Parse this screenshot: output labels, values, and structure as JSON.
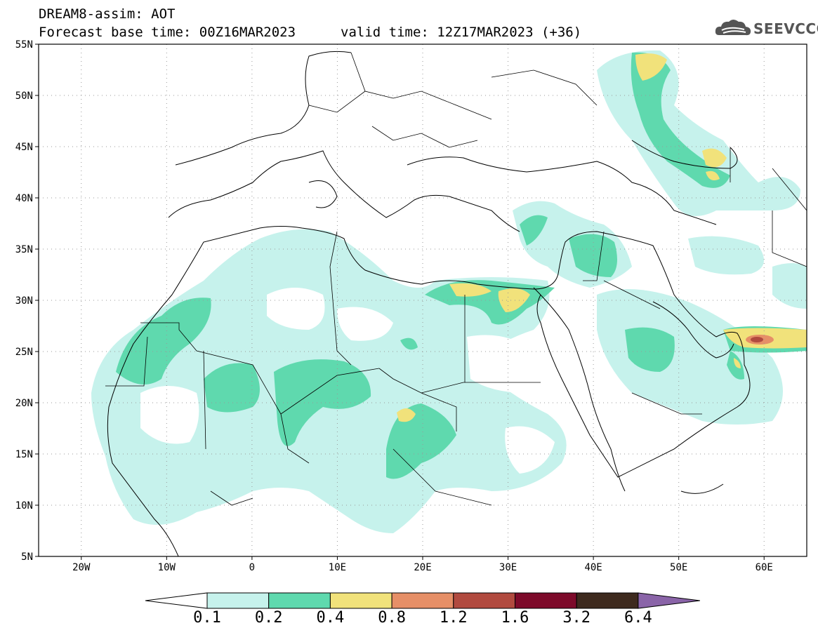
{
  "header": {
    "title": "DREAM8-assim: AOT",
    "base_time": "Forecast base time: 00Z16MAR2023",
    "valid_time": "valid time: 12Z17MAR2023 (+36)"
  },
  "logo": {
    "text": "SEEVCCC",
    "icon": "cloud-icon"
  },
  "map": {
    "projection": "lat-lon",
    "lon_range": [
      -25,
      65
    ],
    "lat_range": [
      5,
      55
    ],
    "grid": true,
    "lat_ticks": [
      {
        "value": 55,
        "label": "55N"
      },
      {
        "value": 50,
        "label": "50N"
      },
      {
        "value": 45,
        "label": "45N"
      },
      {
        "value": 40,
        "label": "40N"
      },
      {
        "value": 35,
        "label": "35N"
      },
      {
        "value": 30,
        "label": "30N"
      },
      {
        "value": 25,
        "label": "25N"
      },
      {
        "value": 20,
        "label": "20N"
      },
      {
        "value": 15,
        "label": "15N"
      },
      {
        "value": 10,
        "label": "10N"
      },
      {
        "value": 5,
        "label": "5N"
      }
    ],
    "lon_ticks": [
      {
        "value": -20,
        "label": "20W"
      },
      {
        "value": -10,
        "label": "10W"
      },
      {
        "value": 0,
        "label": "0"
      },
      {
        "value": 10,
        "label": "10E"
      },
      {
        "value": 20,
        "label": "20E"
      },
      {
        "value": 30,
        "label": "30E"
      },
      {
        "value": 40,
        "label": "40E"
      },
      {
        "value": 50,
        "label": "50E"
      },
      {
        "value": 60,
        "label": "60E"
      }
    ]
  },
  "colorbar": {
    "levels": [
      "0.1",
      "0.2",
      "0.4",
      "0.8",
      "1.2",
      "1.6",
      "3.2",
      "6.4"
    ],
    "colors": [
      "#ffffff",
      "#c6f2ec",
      "#5fd9ae",
      "#f1e27b",
      "#e68f67",
      "#b14a3f",
      "#7d0a2a",
      "#3e2a1e",
      "#8a64a8"
    ]
  },
  "colors": {
    "c1": "#c6f2ec",
    "c2": "#5fd9ae",
    "c3": "#f1e27b",
    "c4": "#e68f67",
    "c5": "#b14a3f"
  }
}
